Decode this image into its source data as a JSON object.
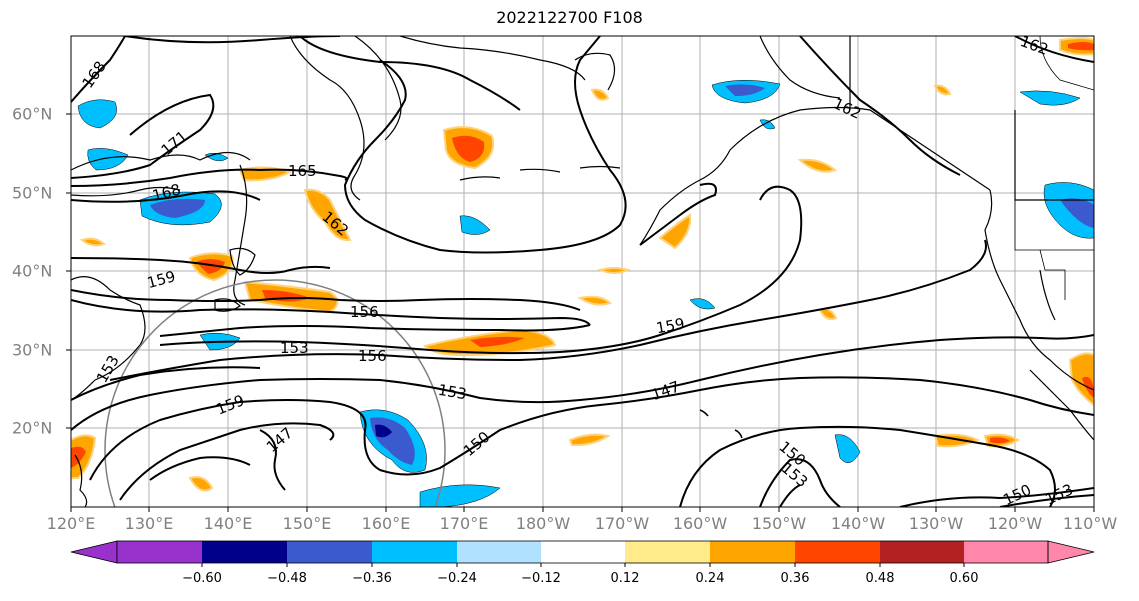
{
  "title": "2022122700 F108",
  "longitude_labels": [
    "120°E",
    "130°E",
    "140°E",
    "150°E",
    "160°E",
    "170°E",
    "180°W",
    "170°W",
    "160°W",
    "150°W",
    "140°W",
    "130°W",
    "120°W",
    "110°W"
  ],
  "latitude_labels": [
    "60°N",
    "50°N",
    "40°N",
    "30°N",
    "20°N"
  ],
  "contour_labels": [
    "168",
    "171",
    "165",
    "168",
    "162",
    "159",
    "156",
    "153",
    "156",
    "153",
    "159",
    "147",
    "153",
    "150",
    "159",
    "147",
    "150",
    "153",
    "150",
    "153",
    "162",
    "162"
  ],
  "colorbar": {
    "tick_labels": [
      "−0.60",
      "−0.48",
      "−0.36",
      "−0.24",
      "−0.12",
      "0.12",
      "0.24",
      "0.36",
      "0.48",
      "0.60"
    ],
    "colors": [
      "#9932cc",
      "#00008b",
      "#3a5acd",
      "#00bfff",
      "#b0e2ff",
      "#ffffff",
      "#ffeb8a",
      "#ffa500",
      "#ff4500",
      "#b22222",
      "#ff88aa",
      "#ff88aa"
    ]
  },
  "map_colors": {
    "ocean": "#ffffff",
    "grid": "#b0b0b0",
    "contour": "#000000",
    "coast": "#000000"
  }
}
